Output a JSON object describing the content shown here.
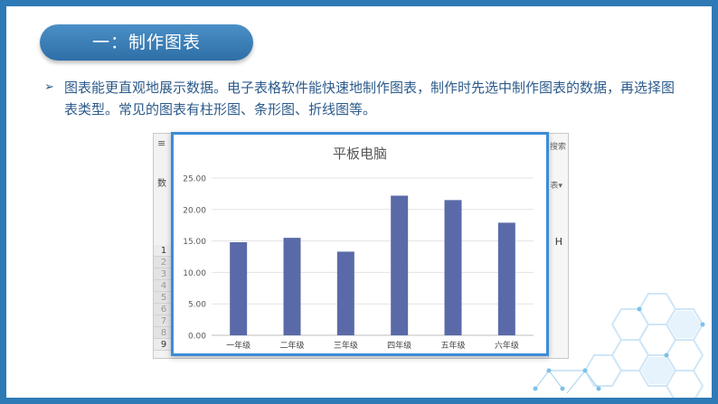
{
  "title": "一：制作图表",
  "bullet": {
    "icon": "arrow-right-icon",
    "text": "图表能更直观地展示数据。电子表格软件能快速地制作图表，制作时先选中制作图表的数据，再选择图表类型。常见的图表有柱形图、条形图、折线图等。"
  },
  "spreadsheet": {
    "menu_icon": "menu-icon",
    "menu_glyph": "≡",
    "col_label": "数",
    "search_label": "搜索",
    "dropdown_label": "表▾",
    "cell_h": "H",
    "rows": [
      "1",
      "2",
      "3",
      "4",
      "5",
      "6",
      "7",
      "8",
      "9"
    ]
  },
  "colors": {
    "frame": "#2e7ab6",
    "title_pill": "#3b80bd",
    "text": "#2c5a8a",
    "bar": "#5a6aa8",
    "chart_border": "#3d8bd9"
  },
  "chart_data": {
    "type": "bar",
    "title": "平板电脑",
    "categories": [
      "一年级",
      "二年级",
      "三年级",
      "四年级",
      "五年级",
      "六年级"
    ],
    "values": [
      14.8,
      15.5,
      13.3,
      22.2,
      21.5,
      17.9
    ],
    "yticks": [
      "0.00",
      "5.00",
      "10.00",
      "15.00",
      "20.00",
      "25.00"
    ],
    "ylim": [
      0,
      25
    ],
    "grid": true,
    "legend": "none"
  }
}
